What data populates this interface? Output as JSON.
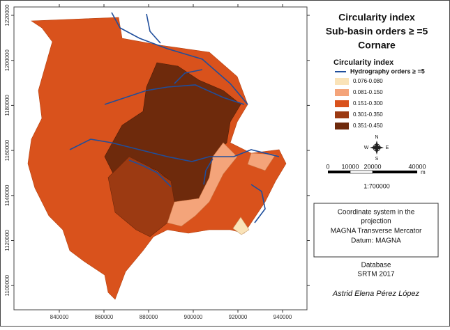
{
  "title": [
    "Circularity index",
    "Sub-basin orders ≥ =5",
    "Cornare"
  ],
  "legend": {
    "title": "Circularity index",
    "hydrography": "Hydrography orders ≥ =5",
    "classes": [
      "0.076-0.080",
      "0.081-0.150",
      "0.151-0.300",
      "0.301-0.350",
      "0.351-0.450"
    ]
  },
  "compass": {
    "n": "N",
    "s": "S",
    "e": "E",
    "w": "W"
  },
  "scale": {
    "ticks": [
      "0",
      "10000",
      "20000",
      "40000"
    ],
    "unit": "m",
    "ratio": "1:700000"
  },
  "coordinate_box": [
    "Coordinate system in the",
    "projection",
    "MAGNA Transverse Mercator",
    "Datum: MAGNA"
  ],
  "database": [
    "Database",
    "SRTM 2017"
  ],
  "author": "Astrid Elena Pérez López",
  "axes": {
    "x_labels": [
      "840000",
      "860000",
      "880000",
      "900000",
      "920000",
      "940000"
    ],
    "y_labels": [
      "1220000",
      "1200000",
      "1180000",
      "1160000",
      "1140000",
      "1120000",
      "1100000"
    ]
  }
}
